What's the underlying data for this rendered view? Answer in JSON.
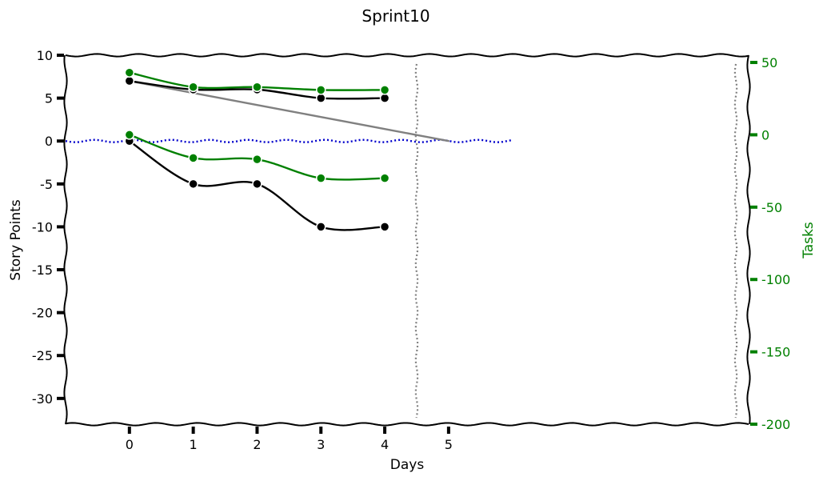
{
  "chart_data": {
    "type": "line",
    "title": "Sprint10",
    "xlabel": "Days",
    "ylabel": "Story Points",
    "y2label": "Tasks",
    "xlim": [
      -1.0,
      9.7
    ],
    "ylim": [
      -33,
      10
    ],
    "y2lim": [
      -200,
      55
    ],
    "x_ticks": [
      0,
      1,
      2,
      3,
      4,
      5
    ],
    "y_ticks": [
      10,
      5,
      0,
      -5,
      -10,
      -15,
      -20,
      -25,
      -30
    ],
    "y2_ticks": [
      50,
      0,
      -50,
      -100,
      -150,
      -200
    ],
    "grid": false,
    "legend": "none",
    "style": "hand-drawn",
    "colors": {
      "points": "#000000",
      "tasks": "#008000",
      "ideal": "#808080",
      "zero": "#0000cc",
      "marker_line": "#808080"
    },
    "series": [
      {
        "axis": "left",
        "color": "#000000",
        "markers": true,
        "x": [
          0,
          1,
          2,
          3,
          4
        ],
        "y": [
          7,
          6,
          6,
          5,
          5
        ]
      },
      {
        "axis": "left",
        "color": "#000000",
        "markers": true,
        "x": [
          0,
          1,
          2,
          3,
          4
        ],
        "y": [
          0,
          -5,
          -5,
          -10,
          -10
        ]
      },
      {
        "axis": "right",
        "color": "#008000",
        "markers": true,
        "x": [
          0,
          1,
          2,
          3,
          4
        ],
        "y": [
          43,
          33,
          33,
          31,
          31
        ]
      },
      {
        "axis": "right",
        "color": "#008000",
        "markers": true,
        "x": [
          0,
          1,
          2,
          3,
          4
        ],
        "y": [
          0,
          -16,
          -17,
          -30,
          -30
        ]
      },
      {
        "axis": "left",
        "color": "#808080",
        "markers": false,
        "x": [
          0,
          1,
          2,
          3,
          4,
          4.5,
          5
        ],
        "y": [
          7,
          5.6,
          4.2,
          2.8,
          1.4,
          0.7,
          0
        ]
      }
    ],
    "zero_line": {
      "axis": "left",
      "y": 0,
      "x_from": -1,
      "x_to": 6,
      "color": "#0000cc",
      "style": "dotted"
    },
    "vertical_markers": [
      {
        "x": 4.5,
        "color": "#808080",
        "style": "dotted"
      },
      {
        "x": 9.5,
        "color": "#808080",
        "style": "dotted"
      }
    ]
  }
}
